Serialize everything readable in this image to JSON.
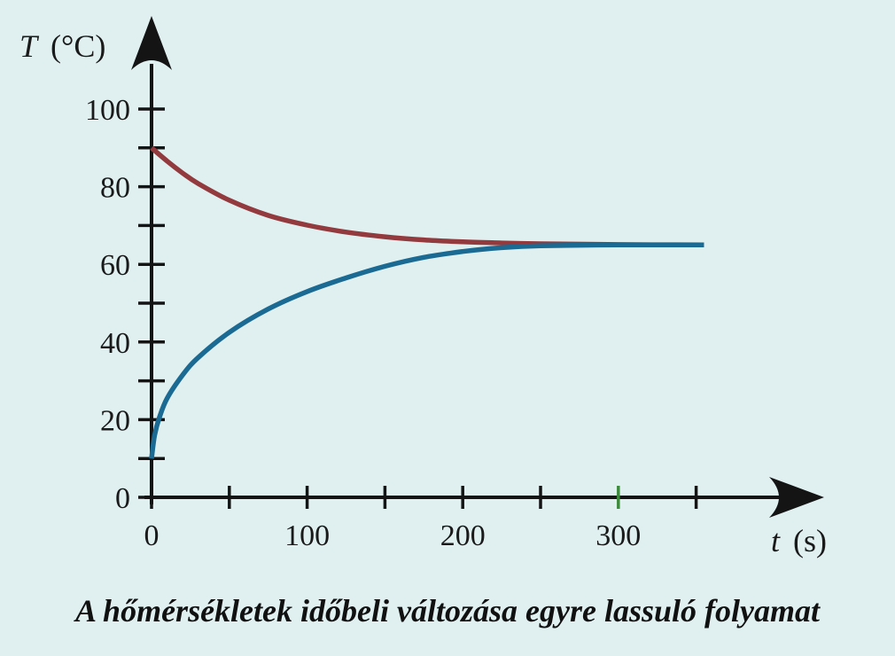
{
  "caption": "A hőmérsékletek időbeli változása egyre lassuló folyamat",
  "chart_data": {
    "type": "line",
    "title": "",
    "xlabel_var": "t",
    "xlabel_unit": "(s)",
    "ylabel_var": "T",
    "ylabel_unit": "(°C)",
    "xlim": [
      0,
      350
    ],
    "ylim": [
      0,
      100
    ],
    "x_ticks": [
      0,
      50,
      100,
      150,
      200,
      250,
      300,
      350
    ],
    "x_tick_labels": [
      {
        "x": 0,
        "label": "0"
      },
      {
        "x": 100,
        "label": "100"
      },
      {
        "x": 200,
        "label": "200"
      },
      {
        "x": 300,
        "label": "300"
      }
    ],
    "y_ticks": [
      0,
      10,
      20,
      30,
      40,
      50,
      60,
      70,
      80,
      90,
      100
    ],
    "y_tick_labels": [
      {
        "y": 0,
        "label": "0"
      },
      {
        "y": 20,
        "label": "20"
      },
      {
        "y": 40,
        "label": "40"
      },
      {
        "y": 60,
        "label": "60"
      },
      {
        "y": 80,
        "label": "80"
      },
      {
        "y": 100,
        "label": "100"
      }
    ],
    "highlight_tick_x": 300,
    "grid": false,
    "series": [
      {
        "color": "#923a3e",
        "x": [
          0,
          10,
          20,
          30,
          50,
          75,
          100,
          125,
          150,
          175,
          200,
          225,
          250,
          300,
          355
        ],
        "y": [
          90,
          86.6,
          83.5,
          80.8,
          76.5,
          72.6,
          70.1,
          68.3,
          67.1,
          66.3,
          65.8,
          65.5,
          65.3,
          65.1,
          65
        ]
      },
      {
        "color": "#1a6a93",
        "x": [
          0,
          2,
          5,
          10,
          20,
          30,
          50,
          75,
          100,
          125,
          150,
          175,
          200,
          225,
          250,
          300,
          355
        ],
        "y": [
          10,
          16,
          20.5,
          25.5,
          31.5,
          36,
          42.5,
          48.5,
          53,
          56.5,
          59.5,
          61.8,
          63.3,
          64.3,
          64.8,
          65,
          65
        ]
      }
    ],
    "colors": {
      "axis": "#141414",
      "highlight_tick": "#3d8a3d",
      "background": "#e0f0f0"
    }
  }
}
